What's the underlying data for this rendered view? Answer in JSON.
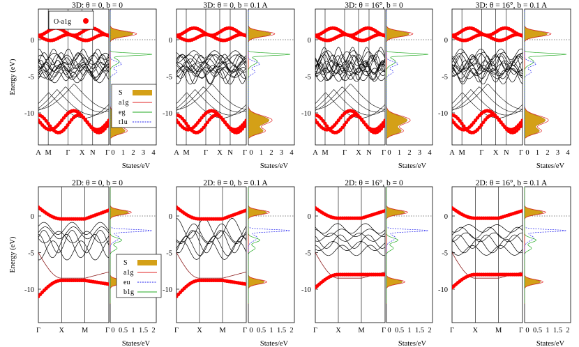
{
  "colors": {
    "o_a1g_dots": "#ff0000",
    "dos_fill": "#d4a017",
    "a1g_line": "#e02020",
    "eg_line": "#22aa22",
    "t1u_line": "#2222ee",
    "b1g_line": "#22aa22",
    "bands": "#000000"
  },
  "chart_data": [
    {
      "type": "line",
      "panel": "band-structure",
      "title": "3D: θ = 0, b = 0",
      "ylabel": "Energy (eV)",
      "ylim": [
        -13.5,
        4
      ],
      "yticks": [
        0,
        -5,
        -10
      ],
      "xticks": [
        "A",
        "M",
        "Γ",
        "X",
        "N",
        "Γ"
      ],
      "legend": [
        "O-a1g"
      ],
      "dos": {
        "xlabel": "States/eV",
        "xticks": [
          "0",
          "1",
          "2",
          "3",
          "4"
        ],
        "xlim": [
          0,
          4
        ],
        "legend": [
          "S",
          "a1g",
          "eg",
          "t1u"
        ]
      }
    },
    {
      "type": "line",
      "panel": "band-structure",
      "title": "3D: θ = 0, b = 0.1 A",
      "ylim": [
        -13.5,
        4
      ],
      "yticks": [
        0,
        -5,
        -10
      ],
      "xticks": [
        "A",
        "M",
        "Γ",
        "X",
        "N",
        "Γ"
      ],
      "dos": {
        "xlabel": "States/eV",
        "xticks": [
          "0",
          "1",
          "2",
          "3",
          "4"
        ],
        "xlim": [
          0,
          4
        ]
      }
    },
    {
      "type": "line",
      "panel": "band-structure",
      "title": "3D: θ = 16°, b = 0",
      "ylim": [
        -13.5,
        4
      ],
      "yticks": [
        0,
        -5,
        -10
      ],
      "xticks": [
        "A",
        "M",
        "Γ",
        "X",
        "N",
        "Γ"
      ],
      "dos": {
        "xlabel": "States/eV",
        "xticks": [
          "0",
          "1",
          "2",
          "3",
          "4"
        ],
        "xlim": [
          0,
          4
        ]
      }
    },
    {
      "type": "line",
      "panel": "band-structure",
      "title": "3D: θ = 16°, b = 0.1 A",
      "ylim": [
        -13.5,
        4
      ],
      "yticks": [
        0,
        -5,
        -10
      ],
      "xticks": [
        "A",
        "M",
        "Γ",
        "X",
        "N",
        "Γ"
      ],
      "dos": {
        "xlabel": "States/eV",
        "xticks": [
          "0",
          "1",
          "2",
          "3",
          "4"
        ],
        "xlim": [
          0,
          4
        ]
      }
    },
    {
      "type": "line",
      "panel": "band-structure",
      "title": "2D: θ = 0, b = 0",
      "ylabel": "Energy (eV)",
      "ylim": [
        -12,
        4
      ],
      "yticks": [
        0,
        -5,
        -10
      ],
      "xticks": [
        "Γ",
        "X",
        "M",
        "Γ"
      ],
      "dos": {
        "xlabel": "States/eV",
        "xticks": [
          "0",
          "0.5",
          "1",
          "1.5",
          "2"
        ],
        "xlim": [
          0,
          2
        ],
        "legend": [
          "S",
          "a1g",
          "eu",
          "b1g"
        ]
      }
    },
    {
      "type": "line",
      "panel": "band-structure",
      "title": "2D: θ = 0, b = 0.1 A",
      "ylim": [
        -12,
        4
      ],
      "yticks": [
        0,
        -5,
        -10
      ],
      "xticks": [
        "Γ",
        "X",
        "M",
        "Γ"
      ],
      "dos": {
        "xlabel": "States/eV",
        "xticks": [
          "0",
          "0.5",
          "1",
          "1.5",
          "2"
        ],
        "xlim": [
          0,
          2
        ]
      }
    },
    {
      "type": "line",
      "panel": "band-structure",
      "title": "2D: θ = 16°, b = 0",
      "ylim": [
        -12,
        4
      ],
      "yticks": [
        0,
        -5,
        -10
      ],
      "xticks": [
        "Γ",
        "X",
        "M",
        "Γ"
      ],
      "dos": {
        "xlabel": "States/eV",
        "xticks": [
          "0",
          "0.5",
          "1",
          "1.5",
          "2"
        ],
        "xlim": [
          0,
          2
        ]
      }
    },
    {
      "type": "line",
      "panel": "band-structure",
      "title": "2D: θ = 16°, b = 0.1 A",
      "ylim": [
        -12,
        4
      ],
      "yticks": [
        0,
        -5,
        -10
      ],
      "xticks": [
        "Γ",
        "X",
        "M",
        "Γ"
      ],
      "dos": {
        "xlabel": "States/eV",
        "xticks": [
          "0",
          "0.5",
          "1",
          "1.5",
          "2"
        ],
        "xlim": [
          0,
          2
        ]
      }
    }
  ]
}
